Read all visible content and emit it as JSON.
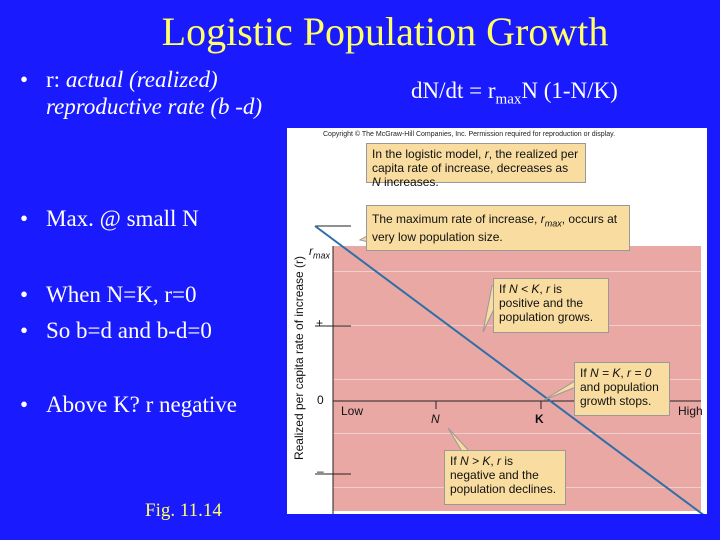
{
  "title": "Logistic Population Growth",
  "bullets": [
    {
      "prefix": "r: ",
      "italic": "actual (realized) reproductive rate (b -d)"
    },
    {
      "text": "Max. @ small N"
    },
    {
      "text": "When N=K, r=0"
    },
    {
      "text": "So b=d and b-d=0"
    },
    {
      "text": "Above K? r negative"
    }
  ],
  "figure_ref": "Fig. 11.14",
  "equation": {
    "lhs": "dN/dt = r",
    "sub": "max",
    "rhs": "N (1-N/K)"
  },
  "figure": {
    "copyright": "Copyright © The McGraw-Hill Companies, Inc. Permission required for reproduction or display.",
    "y_axis_label": "Realized per capita rate of increase (r)",
    "y_ticks": {
      "rmax": "r",
      "rmax_sub": "max",
      "plus": "+",
      "zero": "0",
      "minus": "–"
    },
    "x_ticks": {
      "low": "Low",
      "n": "N",
      "k": "K",
      "high": "High"
    },
    "callouts": [
      {
        "pre": "In the logistic model, ",
        "it1": "r",
        "mid": ", the realized per capita rate of increase, decreases as ",
        "it2": "N",
        "post": " increases."
      },
      {
        "pre": "The maximum rate of increase, ",
        "it1": "r",
        "sub": "max",
        "post": ", occurs at very low population size."
      },
      {
        "pre": "If ",
        "it1": "N < K",
        "mid": ", ",
        "it2": "r",
        "post": " is positive and the population grows."
      },
      {
        "pre": "If ",
        "it1": "N = K",
        "mid": ", ",
        "it2": "r = 0",
        "post": " and population growth stops."
      },
      {
        "pre": "If ",
        "it1": "N > K",
        "mid": ", ",
        "it2": "r",
        "post": " is negative and the population declines."
      }
    ],
    "colors": {
      "plot_bg": "#e9a8a4",
      "line": "#2f6fa8",
      "callout_bg": "#f8dca0"
    }
  }
}
